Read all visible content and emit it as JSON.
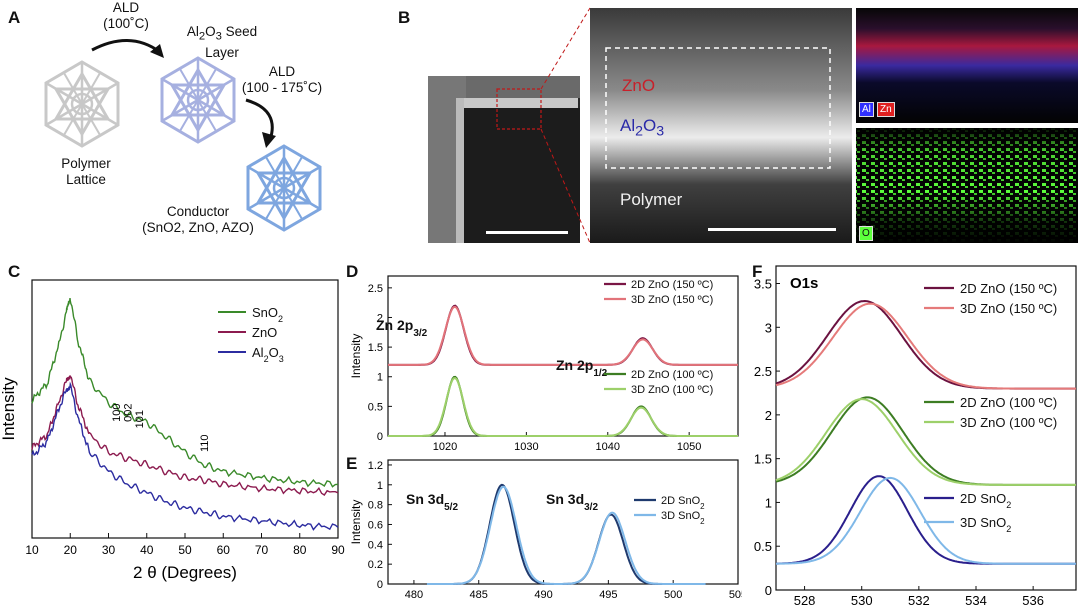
{
  "panel_a": {
    "label": "A",
    "step1_line1": "ALD",
    "step1_line2": "(100˚C)",
    "seed_line1_pre": "Al",
    "seed_line1_sub1": "2",
    "seed_line1_mid": "O",
    "seed_line1_sub2": "3",
    "seed_line1_post": " Seed",
    "seed_line2": "Layer",
    "step2_line1": "ALD",
    "step2_line2": "(100 - 175˚C)",
    "polymer_line1": "Polymer",
    "polymer_line2": "Lattice",
    "conductor_line1": "Conductor",
    "conductor_line2": "(SnO2, ZnO, AZO)",
    "colors": {
      "polymer": "#e6e6e6",
      "seed": "#b4bde8",
      "conductor": "#8fb4e6"
    }
  },
  "panel_b": {
    "label": "B",
    "zno": "ZnO",
    "al2o3_pre": "Al",
    "al2o3_sub1": "2",
    "al2o3_mid": "O",
    "al2o3_sub2": "3",
    "polymer": "Polymer",
    "eds_al": "Al",
    "eds_zn": "Zn",
    "eds_o": "O",
    "colors": {
      "al": "#3030ff",
      "zn": "#e02020",
      "o": "#5cff3c"
    }
  },
  "chart_data": [
    {
      "panel": "C",
      "type": "line",
      "xlabel": "2 θ (Degrees)",
      "ylabel": "Intensity",
      "xlim": [
        10,
        90
      ],
      "xticks": [
        "10",
        "20",
        "30",
        "40",
        "50",
        "60",
        "70",
        "80",
        "90"
      ],
      "series": [
        {
          "name": "SnO2",
          "color": "#3a8a2a",
          "x": [
            10,
            14,
            17,
            19,
            20,
            22,
            25,
            30,
            35,
            40,
            45,
            50,
            55,
            60,
            70,
            80,
            90
          ],
          "y": [
            0.74,
            0.82,
            1.0,
            1.15,
            1.22,
            1.02,
            0.83,
            0.73,
            0.67,
            0.64,
            0.57,
            0.5,
            0.44,
            0.41,
            0.38,
            0.36,
            0.35
          ]
        },
        {
          "name": "ZnO",
          "color": "#8c1b4f",
          "x": [
            10,
            14,
            17,
            19,
            20,
            22,
            25,
            30,
            35,
            40,
            45,
            50,
            55,
            60,
            70,
            80,
            90
          ],
          "y": [
            0.52,
            0.58,
            0.73,
            0.83,
            0.86,
            0.72,
            0.58,
            0.5,
            0.47,
            0.44,
            0.41,
            0.38,
            0.37,
            0.35,
            0.33,
            0.32,
            0.31
          ]
        },
        {
          "name": "Al2O3",
          "color": "#2c2ca0",
          "x": [
            10,
            14,
            17,
            19,
            20,
            22,
            25,
            30,
            35,
            40,
            45,
            50,
            55,
            60,
            70,
            80,
            90
          ],
          "y": [
            0.48,
            0.55,
            0.7,
            0.79,
            0.81,
            0.66,
            0.5,
            0.41,
            0.35,
            0.31,
            0.27,
            0.24,
            0.22,
            0.2,
            0.18,
            0.16,
            0.15
          ]
        }
      ],
      "legend": [
        {
          "pre": "SnO",
          "sub": "2"
        },
        {
          "pre": "ZnO",
          "sub": ""
        },
        {
          "pre": "Al",
          "sub": "2",
          "mid": "O",
          "sub2": "3"
        }
      ],
      "annotations": [
        "100",
        "002",
        "101",
        "110"
      ]
    },
    {
      "panel": "D",
      "type": "line",
      "ylabel": "Intensity",
      "xlim": [
        1013,
        1056
      ],
      "ylim": [
        0,
        2.7
      ],
      "xticks": [
        "1020",
        "1030",
        "1040",
        "1050"
      ],
      "yticks": [
        "0",
        "0.5",
        "1",
        "1.5",
        "2",
        "2.5"
      ],
      "peak_labels": {
        "a_main": "Zn 2p",
        "a_sub": "3/2",
        "b_main": "Zn 2p",
        "b_sub": "1/2"
      },
      "series": [
        {
          "name": "2D ZnO (150 ºC)",
          "color": "#7a1645",
          "baseline": 1.2,
          "peaks": [
            [
              1021.2,
              1.0,
              1.1
            ],
            [
              1044.3,
              0.45,
              1.2
            ]
          ]
        },
        {
          "name": "3D ZnO (150 ºC)",
          "color": "#e2737a",
          "baseline": 1.2,
          "peaks": [
            [
              1021.2,
              0.98,
              1.15
            ],
            [
              1044.3,
              0.43,
              1.25
            ]
          ]
        },
        {
          "name": "2D ZnO (100 ºC)",
          "color": "#3d7d23",
          "baseline": 0.0,
          "peaks": [
            [
              1021.2,
              1.0,
              1.0
            ],
            [
              1044.1,
              0.5,
              1.2
            ]
          ]
        },
        {
          "name": "3D ZnO (100 ºC)",
          "color": "#9dd06a",
          "baseline": 0.0,
          "peaks": [
            [
              1021.2,
              0.98,
              1.05
            ],
            [
              1044.1,
              0.48,
              1.25
            ]
          ]
        }
      ]
    },
    {
      "panel": "E",
      "type": "line",
      "ylabel": "Intensity",
      "xlim": [
        478,
        505
      ],
      "ylim": [
        0,
        1.25
      ],
      "xticks": [
        "480",
        "485",
        "490",
        "495",
        "500",
        "505"
      ],
      "yticks": [
        "0",
        "0.2",
        "0.4",
        "0.6",
        "0.8",
        "1",
        "1.2"
      ],
      "peak_labels": {
        "a_main": "Sn 3d",
        "a_sub": "5/2",
        "b_main": "Sn 3d",
        "b_sub": "3/2"
      },
      "series": [
        {
          "name": "2D SnO2",
          "color": "#1f3a6e",
          "baseline": 0.0,
          "peaks": [
            [
              486.8,
              1.0,
              0.95
            ],
            [
              495.2,
              0.7,
              0.95
            ]
          ]
        },
        {
          "name": "3D SnO2",
          "color": "#7fb8e8",
          "baseline": 0.0,
          "peaks": [
            [
              486.9,
              0.98,
              1.0
            ],
            [
              495.3,
              0.72,
              1.0
            ]
          ]
        }
      ],
      "legend": [
        {
          "pre": "2D SnO",
          "sub": "2"
        },
        {
          "pre": "3D SnO",
          "sub": "2"
        }
      ]
    },
    {
      "panel": "F",
      "type": "line",
      "title": "O1s",
      "ylabel": "Intensity",
      "xlim": [
        527,
        537.5
      ],
      "ylim": [
        0,
        3.7
      ],
      "xticks": [
        "528",
        "530",
        "532",
        "534",
        "536"
      ],
      "yticks": [
        "0",
        "0.5",
        "1",
        "1.5",
        "2",
        "2.5",
        "3",
        "3.5"
      ],
      "series": [
        {
          "name": "2D ZnO (150 ºC)",
          "color": "#6b1240",
          "baseline": 2.3,
          "peaks": [
            [
              530.1,
              1.0,
              1.3
            ]
          ]
        },
        {
          "name": "3D ZnO (150 ºC)",
          "color": "#e57a7a",
          "baseline": 2.3,
          "peaks": [
            [
              530.3,
              0.97,
              1.3
            ]
          ]
        },
        {
          "name": "2D ZnO (100 ºC)",
          "color": "#3d7d23",
          "baseline": 1.2,
          "peaks": [
            [
              530.2,
              1.0,
              1.25
            ]
          ]
        },
        {
          "name": "3D ZnO (100 ºC)",
          "color": "#9dd06a",
          "baseline": 1.2,
          "peaks": [
            [
              530.0,
              0.98,
              1.25
            ]
          ]
        },
        {
          "name": "2D SnO2",
          "color": "#2a1f8c",
          "baseline": 0.3,
          "peaks": [
            [
              530.6,
              1.0,
              1.0
            ]
          ]
        },
        {
          "name": "3D SnO2",
          "color": "#7fb8e8",
          "baseline": 0.3,
          "peaks": [
            [
              531.0,
              0.98,
              1.05
            ]
          ]
        }
      ],
      "legend": [
        {
          "pre": "2D ZnO (150 ºC)",
          "sub": ""
        },
        {
          "pre": "3D ZnO (150 ºC)",
          "sub": ""
        },
        {
          "pre": "2D ZnO (100 ºC)",
          "sub": ""
        },
        {
          "pre": "3D ZnO (100 ºC)",
          "sub": ""
        },
        {
          "pre": "2D SnO",
          "sub": "2"
        },
        {
          "pre": "3D SnO",
          "sub": "2"
        }
      ]
    }
  ]
}
